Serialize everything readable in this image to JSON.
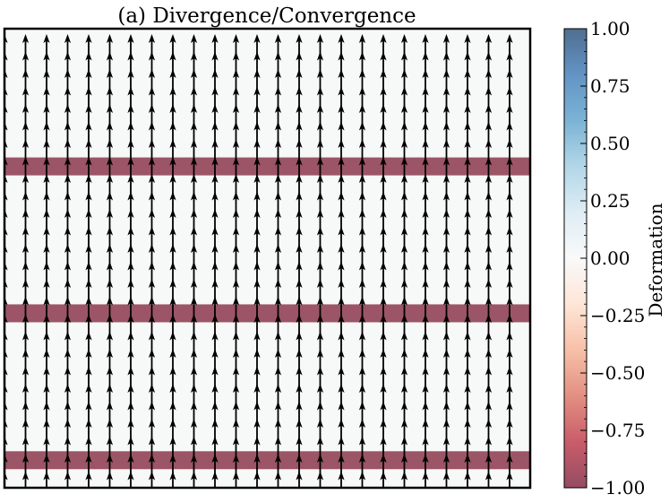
{
  "chart_data": {
    "type": "heatmap",
    "title": "(a) Divergence/Convergence",
    "xlabel": "",
    "ylabel": "",
    "background_value": 0.0,
    "bands": [
      {
        "y_center": 0.7,
        "value": -1.0
      },
      {
        "y_center": 0.38,
        "value": -1.0
      },
      {
        "y_center": 0.06,
        "value": -1.0
      }
    ],
    "quiver": {
      "columns": 25,
      "rows": 26,
      "u": 0,
      "v": 1,
      "direction": "up",
      "color": "#000000"
    },
    "colorbar": {
      "label": "Deformation",
      "range": [
        -1.0,
        1.0
      ],
      "ticks": [
        1.0,
        0.75,
        0.5,
        0.25,
        0.0,
        -0.25,
        -0.5,
        -0.75,
        -1.0
      ],
      "tick_labels": [
        "1.00",
        "0.75",
        "0.50",
        "0.25",
        "0.00",
        "−0.25",
        "−0.50",
        "−0.75",
        "−1.00"
      ],
      "colormap": "RdBu",
      "alpha": 0.7,
      "colors": [
        "#67001f",
        "#b2182b",
        "#d6604d",
        "#f4a582",
        "#fddbc7",
        "#f7f7f7",
        "#d1e5f0",
        "#92c5de",
        "#4393c3",
        "#2166ac",
        "#053061"
      ]
    },
    "band_color": "#9b5566",
    "background_color": "#f7f8f8"
  }
}
